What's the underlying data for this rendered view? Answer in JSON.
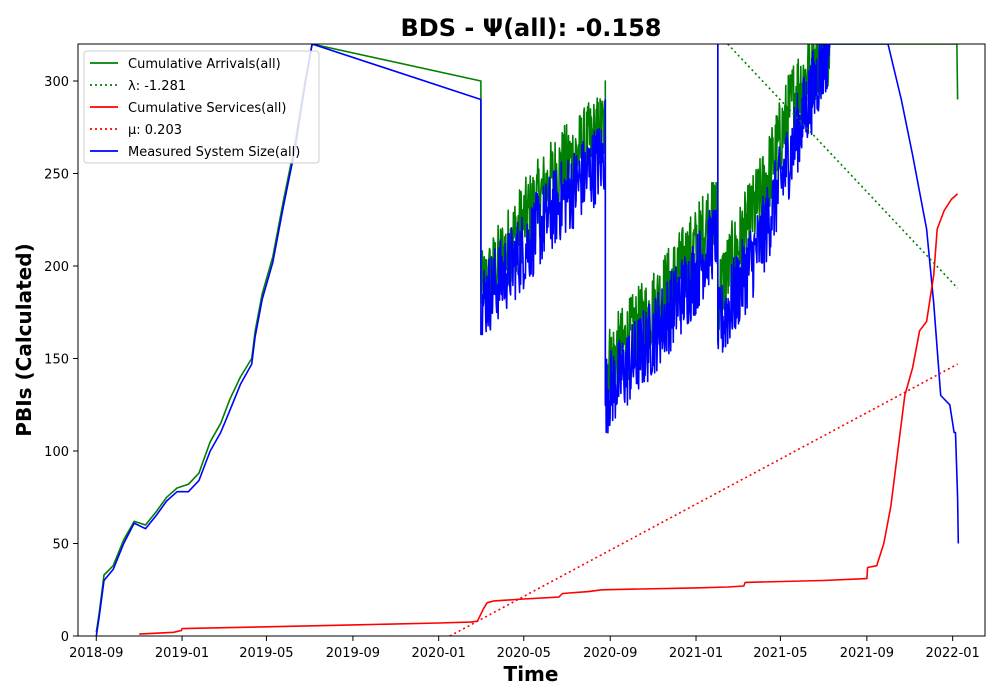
{
  "chart_data": {
    "type": "line",
    "title": "BDS -  Ψ(all): -0.158",
    "xlabel": "Time",
    "ylabel": "PBIs (Calculated)",
    "x_range": [
      "2018-08-06",
      "2022-02-16"
    ],
    "ylim": [
      0,
      320
    ],
    "x_ticks": [
      "2018-09",
      "2019-01",
      "2019-05",
      "2019-09",
      "2020-01",
      "2020-05",
      "2020-09",
      "2021-01",
      "2021-05",
      "2021-09",
      "2022-01"
    ],
    "y_ticks": [
      0,
      50,
      100,
      150,
      200,
      250,
      300
    ],
    "grid": false,
    "legend_position": "top-left",
    "series": [
      {
        "name": "Cumulative Arrivals(all)",
        "color": "#008000",
        "style": "solid",
        "points": [
          [
            "2018-09-01",
            2
          ],
          [
            "2018-09-05",
            12
          ],
          [
            "2018-09-12",
            33
          ],
          [
            "2018-09-25",
            38
          ],
          [
            "2018-10-10",
            52
          ],
          [
            "2018-10-25",
            62
          ],
          [
            "2018-11-10",
            60
          ],
          [
            "2018-11-25",
            67
          ],
          [
            "2018-12-10",
            75
          ],
          [
            "2018-12-25",
            80
          ],
          [
            "2019-01-10",
            82
          ],
          [
            "2019-01-25",
            88
          ],
          [
            "2019-02-10",
            105
          ],
          [
            "2019-02-25",
            115
          ],
          [
            "2019-03-10",
            128
          ],
          [
            "2019-03-25",
            140
          ],
          [
            "2019-04-10",
            150
          ],
          [
            "2019-04-15",
            165
          ],
          [
            "2019-04-25",
            185
          ],
          [
            "2019-05-10",
            205
          ],
          [
            "2019-05-25",
            235
          ],
          [
            "2019-06-10",
            265
          ],
          [
            "2019-06-25",
            300
          ],
          [
            "2019-07-05",
            320
          ]
        ],
        "segments": [
          {
            "start": "2020-03-01",
            "end": "2020-08-25",
            "low": 180,
            "high": 300,
            "trend": [
              [
                0,
                185
              ],
              [
                0.3,
                220
              ],
              [
                0.6,
                250
              ],
              [
                1,
                275
              ]
            ]
          },
          {
            "start": "2020-08-25",
            "end": "2021-02-01",
            "low": 110,
            "high": 245,
            "trend": [
              [
                0,
                145
              ],
              [
                0.4,
                175
              ],
              [
                0.8,
                210
              ],
              [
                1,
                235
              ]
            ]
          },
          {
            "start": "2021-02-01",
            "end": "2021-07-10",
            "low": 165,
            "high": 320,
            "trend": [
              [
                0,
                185
              ],
              [
                0.4,
                240
              ],
              [
                0.7,
                295
              ],
              [
                1,
                320
              ]
            ]
          }
        ],
        "tail": [
          [
            "2022-01-07",
            320
          ],
          [
            "2022-01-08",
            290
          ]
        ]
      },
      {
        "name": "Measured System Size(all)",
        "color": "#0000ff",
        "style": "solid",
        "points": [
          [
            "2018-09-01",
            0
          ],
          [
            "2018-09-05",
            10
          ],
          [
            "2018-09-12",
            30
          ],
          [
            "2018-09-25",
            36
          ],
          [
            "2018-10-10",
            50
          ],
          [
            "2018-10-25",
            61
          ],
          [
            "2018-11-10",
            58
          ],
          [
            "2018-11-25",
            65
          ],
          [
            "2018-12-10",
            73
          ],
          [
            "2018-12-25",
            78
          ],
          [
            "2019-01-10",
            78
          ],
          [
            "2019-01-25",
            84
          ],
          [
            "2019-02-10",
            100
          ],
          [
            "2019-02-25",
            110
          ],
          [
            "2019-03-10",
            122
          ],
          [
            "2019-03-25",
            136
          ],
          [
            "2019-04-10",
            147
          ],
          [
            "2019-04-15",
            162
          ],
          [
            "2019-04-25",
            182
          ],
          [
            "2019-05-10",
            202
          ],
          [
            "2019-05-25",
            232
          ],
          [
            "2019-06-10",
            262
          ],
          [
            "2019-06-25",
            298
          ],
          [
            "2019-07-05",
            320
          ]
        ],
        "segments": [
          {
            "start": "2020-03-01",
            "end": "2020-08-25",
            "low": 163,
            "high": 290,
            "trend": [
              [
                0,
                180
              ],
              [
                0.3,
                205
              ],
              [
                0.6,
                232
              ],
              [
                1,
                260
              ]
            ]
          },
          {
            "start": "2020-08-25",
            "end": "2021-02-01",
            "low": 108,
            "high": 230,
            "trend": [
              [
                0,
                130
              ],
              [
                0.4,
                160
              ],
              [
                0.8,
                195
              ],
              [
                1,
                220
              ]
            ]
          },
          {
            "start": "2021-02-01",
            "end": "2021-07-10",
            "low": 145,
            "high": 320,
            "trend": [
              [
                0,
                165
              ],
              [
                0.4,
                215
              ],
              [
                0.7,
                270
              ],
              [
                1,
                320
              ]
            ]
          }
        ],
        "tail": [
          [
            "2021-10-01",
            320
          ],
          [
            "2021-10-20",
            290
          ],
          [
            "2021-11-05",
            260
          ],
          [
            "2021-11-15",
            240
          ],
          [
            "2021-11-25",
            220
          ],
          [
            "2021-12-05",
            180
          ],
          [
            "2021-12-15",
            130
          ],
          [
            "2021-12-28",
            125
          ],
          [
            "2022-01-03",
            110
          ],
          [
            "2022-01-05",
            110
          ],
          [
            "2022-01-08",
            75
          ],
          [
            "2022-01-09",
            50
          ]
        ]
      },
      {
        "name": "Cumulative Services(all)",
        "color": "#ff0000",
        "style": "solid",
        "points": [
          [
            "2018-11-01",
            1
          ],
          [
            "2018-12-20",
            2
          ],
          [
            "2018-12-31",
            3
          ],
          [
            "2019-01-01",
            4
          ],
          [
            "2019-05-01",
            5
          ],
          [
            "2019-09-01",
            6
          ],
          [
            "2020-01-01",
            7
          ],
          [
            "2020-02-15",
            7.5
          ],
          [
            "2020-02-25",
            8
          ],
          [
            "2020-03-05",
            15
          ],
          [
            "2020-03-10",
            18
          ],
          [
            "2020-03-20",
            19
          ],
          [
            "2020-05-01",
            20
          ],
          [
            "2020-06-20",
            21
          ],
          [
            "2020-06-25",
            23
          ],
          [
            "2020-08-01",
            24
          ],
          [
            "2020-08-20",
            25
          ],
          [
            "2020-12-31",
            26
          ],
          [
            "2021-02-15",
            26.5
          ],
          [
            "2021-03-10",
            27
          ],
          [
            "2021-03-12",
            29
          ],
          [
            "2021-07-01",
            30
          ],
          [
            "2021-09-01",
            31
          ],
          [
            "2021-09-02",
            37
          ],
          [
            "2021-09-15",
            38
          ],
          [
            "2021-09-25",
            50
          ],
          [
            "2021-10-05",
            70
          ],
          [
            "2021-10-15",
            100
          ],
          [
            "2021-10-25",
            130
          ],
          [
            "2021-11-05",
            145
          ],
          [
            "2021-11-15",
            165
          ],
          [
            "2021-11-25",
            170
          ],
          [
            "2021-12-05",
            195
          ],
          [
            "2021-12-10",
            220
          ],
          [
            "2021-12-20",
            230
          ],
          [
            "2021-12-30",
            236
          ],
          [
            "2022-01-08",
            239
          ]
        ]
      },
      {
        "name": "λ: -1.281",
        "color": "#008000",
        "style": "dotted",
        "points": [
          [
            "2021-02-15",
            320
          ],
          [
            "2022-01-08",
            188
          ]
        ]
      },
      {
        "name": "μ: 0.203",
        "color": "#ff0000",
        "style": "dotted",
        "points": [
          [
            "2020-01-17",
            0
          ],
          [
            "2022-01-08",
            147
          ]
        ]
      }
    ]
  }
}
